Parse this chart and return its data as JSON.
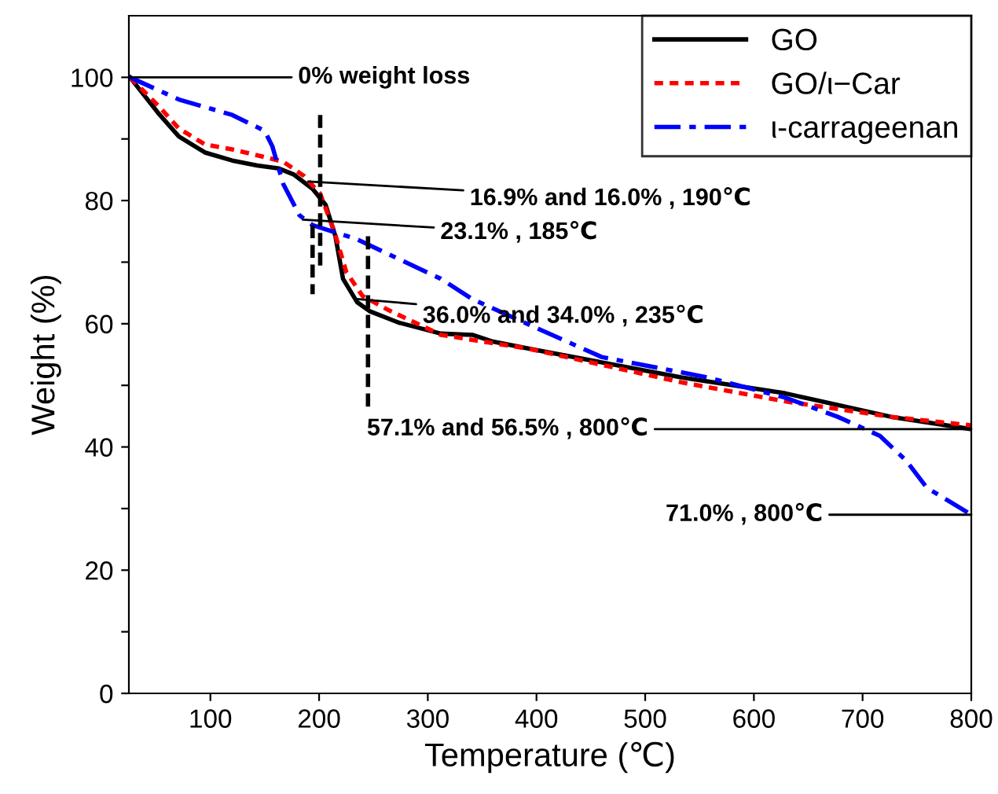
{
  "chart_data": {
    "type": "line",
    "xlabel": "Temperature (℃)",
    "ylabel": "Weight (%)",
    "xlim": [
      25,
      800
    ],
    "ylim": [
      0,
      110
    ],
    "xticks": [
      100,
      200,
      300,
      400,
      500,
      600,
      700,
      800
    ],
    "yticks": [
      0,
      {
        "value": 10,
        "label": null
      },
      20,
      {
        "value": 30,
        "label": null
      },
      40,
      {
        "value": 50,
        "label": null
      },
      60,
      {
        "value": 70,
        "label": null
      },
      80,
      {
        "value": 90,
        "label": null
      },
      100
    ],
    "legend": "top right",
    "grid": false,
    "series": [
      {
        "name": "GO",
        "color": "#000000",
        "line_style": "solid",
        "x": [
          26,
          52,
          71,
          95,
          120,
          143,
          163,
          177,
          194,
          206,
          215,
          222,
          235,
          247,
          273,
          312,
          341,
          360,
          395,
          533,
          629,
          726,
          800
        ],
        "values": [
          100,
          94.2,
          90.4,
          87.8,
          86.5,
          85.7,
          85.2,
          84.2,
          81.9,
          79.3,
          74.2,
          67.3,
          63.5,
          62,
          60.2,
          58.4,
          58.2,
          57.1,
          55.9,
          51.3,
          48.7,
          44.9,
          42.9
        ]
      },
      {
        "name": "GO/ι−Car",
        "color": "#ff0000",
        "line_style": "dotted",
        "x": [
          26,
          52,
          71,
          95,
          120,
          149,
          167,
          186,
          201,
          214,
          225,
          240,
          264,
          312,
          394,
          533,
          629,
          726,
          800
        ],
        "values": [
          100,
          95.4,
          91.7,
          89.1,
          88.3,
          87.1,
          86.3,
          84,
          81.1,
          75,
          68.4,
          64.5,
          62.2,
          58.2,
          55.9,
          50.5,
          47.4,
          44.9,
          43.5
        ]
      },
      {
        "name": "ι-carrageenan",
        "color": "#0000ff",
        "line_style": "dashdot",
        "x": [
          26,
          71,
          120,
          150,
          157,
          167,
          182,
          194,
          235,
          312,
          341,
          395,
          460,
          557,
          629,
          677,
          716,
          740,
          759,
          800
        ],
        "values": [
          100,
          96.4,
          93.9,
          91.3,
          88.8,
          82.7,
          77.6,
          76,
          73.7,
          67.3,
          64,
          59.7,
          54.6,
          51.3,
          48,
          44.9,
          41.8,
          37.8,
          33.4,
          29
        ]
      },
      {
        "color": "#000000",
        "line_style": "dashed",
        "x": [
          201,
          201
        ],
        "values": [
          93.9,
          68.4
        ]
      },
      {
        "color": "#000000",
        "line_style": "dashed",
        "x": [
          194,
          194
        ],
        "values": [
          76,
          64.8
        ]
      },
      {
        "color": "#000000",
        "line_style": "dashed",
        "x": [
          245,
          245
        ],
        "values": [
          74.2,
          46.2
        ]
      }
    ],
    "annotations": [
      {
        "text": "0% weight loss",
        "x": 26,
        "y": 100
      },
      {
        "text": "16.9% and 16.0% , 190℃",
        "x": 190,
        "y": 83.1
      },
      {
        "text": "23.1% , 185℃",
        "x": 185,
        "y": 76.9
      },
      {
        "text": "36.0% and 34.0% , 235℃",
        "x": 235,
        "y": 64
      },
      {
        "text": "57.1% and 56.5% , 800℃",
        "x": 800,
        "y": 42.9
      },
      {
        "text": "71.0% , 800℃",
        "x": 800,
        "y": 29
      }
    ]
  }
}
